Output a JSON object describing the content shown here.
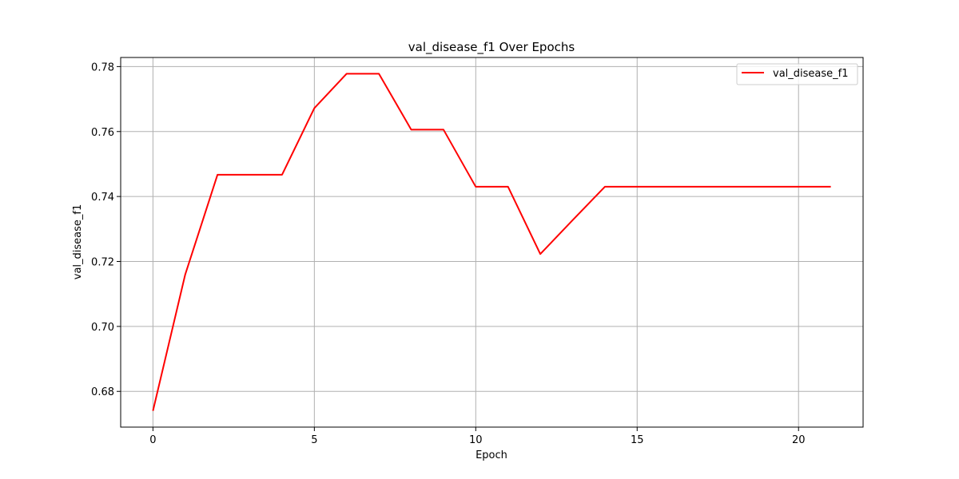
{
  "chart_data": {
    "type": "line",
    "title": "val_disease_f1 Over Epochs",
    "xlabel": "Epoch",
    "ylabel": "val_disease_f1",
    "xlim": [
      -1,
      22
    ],
    "ylim": [
      0.669,
      0.7828
    ],
    "xticks": [
      0,
      5,
      10,
      15,
      20
    ],
    "yticks": [
      0.68,
      0.7,
      0.72,
      0.74,
      0.76,
      0.78
    ],
    "ytick_labels": [
      "0.68",
      "0.70",
      "0.72",
      "0.74",
      "0.76",
      "0.78"
    ],
    "grid": true,
    "legend_position": "top-right",
    "series": [
      {
        "name": "val_disease_f1",
        "color": "#ff0000",
        "x": [
          0,
          1,
          2,
          3,
          4,
          5,
          6,
          7,
          8,
          9,
          10,
          11,
          12,
          13,
          14,
          15,
          16,
          17,
          18,
          19,
          20,
          21
        ],
        "y": [
          0.674,
          0.716,
          0.7467,
          0.7467,
          0.7467,
          0.7672,
          0.7778,
          0.7778,
          0.7606,
          0.7606,
          0.743,
          0.743,
          0.7223,
          0.7327,
          0.743,
          0.743,
          0.743,
          0.743,
          0.743,
          0.743,
          0.743,
          0.743
        ]
      }
    ]
  }
}
